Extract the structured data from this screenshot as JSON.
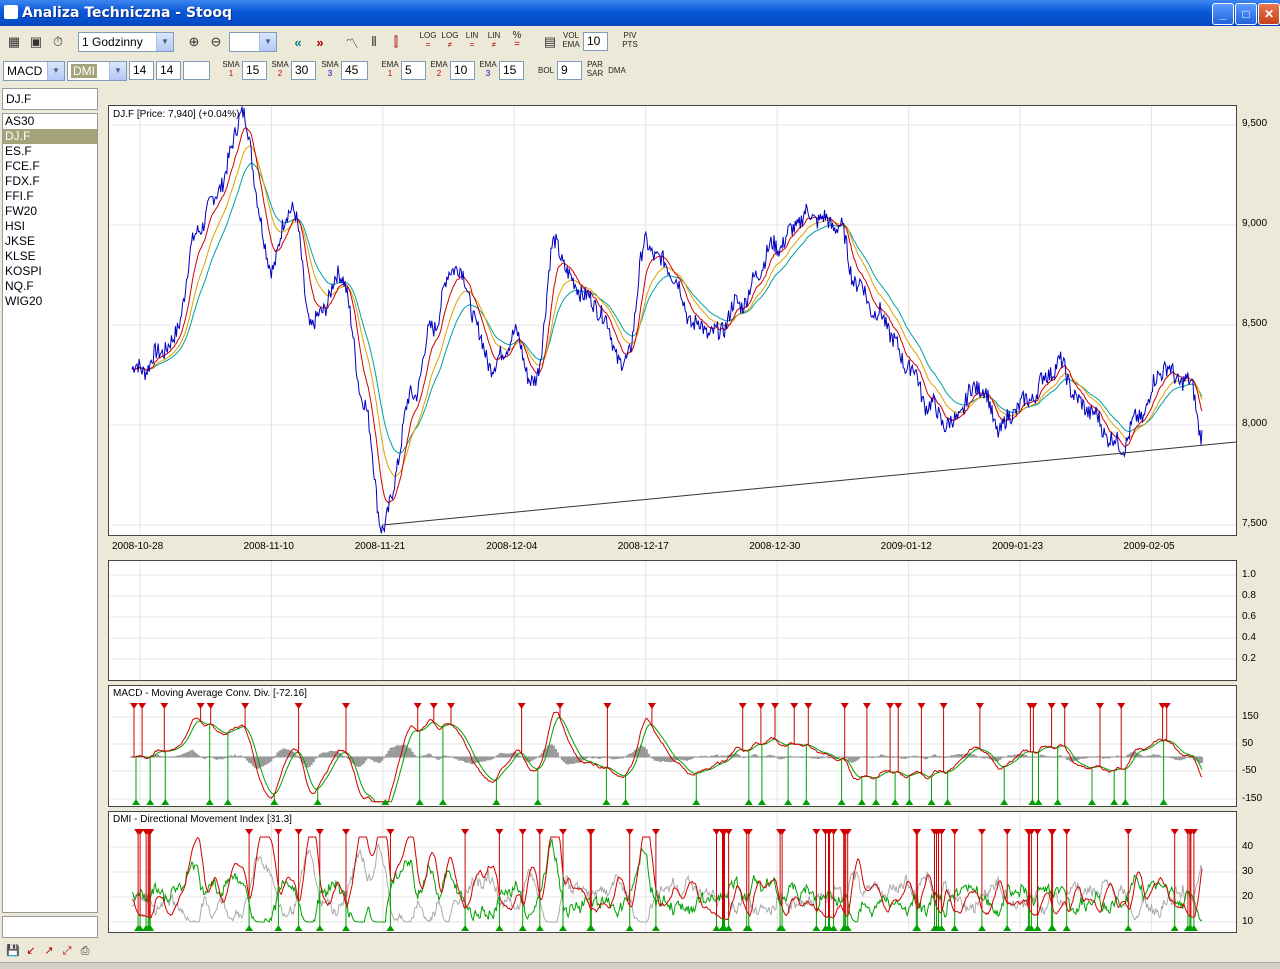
{
  "window": {
    "title": "Analiza Techniczna - Stooq"
  },
  "toolbar1": {
    "interval": "1 Godzinny",
    "zoom_value": "",
    "log_eq": [
      "LOG",
      "="
    ],
    "log_neq": [
      "LOG",
      "≠"
    ],
    "lin_eq": [
      "LIN",
      "="
    ],
    "lin_neq": [
      "LIN",
      "≠"
    ],
    "pct": [
      "%",
      "="
    ],
    "vol_ema": [
      "VOL",
      "EMA"
    ],
    "vol_ema_value": "10",
    "piv_pts": [
      "PIV",
      "PTS"
    ]
  },
  "toolbar2": {
    "indicator1": "MACD",
    "indicator2": "DMI",
    "param1": "14",
    "param2": "14",
    "param3": "",
    "sma1": "15",
    "sma2": "30",
    "sma3": "45",
    "ema1": "5",
    "ema2": "10",
    "ema3": "15",
    "bol": "9",
    "sma_label": "SMA",
    "ema_label": "EMA",
    "bol_label": "BOL",
    "par_sar": [
      "PAR",
      "SAR"
    ],
    "dma_label": "DMA",
    "idx": [
      "1",
      "2",
      "3"
    ]
  },
  "sidebar": {
    "current": "DJ.F",
    "items": [
      "AS30",
      "DJ.F",
      "ES.F",
      "FCE.F",
      "FDX.F",
      "FFI.F",
      "FW20",
      "HSI",
      "JKSE",
      "KLSE",
      "KOSPI",
      "NQ.F",
      "WIG20"
    ],
    "selected_index": 1
  },
  "price_panel": {
    "title": "DJ.F [Price: 7,940] (+0.04%)",
    "yticks": [
      "9,500",
      "9,000",
      "8,500",
      "8,000",
      "7,500"
    ],
    "xticks": [
      "2008-10-28",
      "2008-11-10",
      "2008-11-21",
      "2008-12-04",
      "2008-12-17",
      "2008-12-30",
      "2009-01-12",
      "2009-01-23",
      "2009-02-05"
    ]
  },
  "volume_panel": {
    "yticks": [
      "1.0",
      "0.8",
      "0.6",
      "0.4",
      "0.2"
    ]
  },
  "macd_panel": {
    "title": "MACD - Moving Average Conv. Div. [-72.16]",
    "yticks": [
      "150",
      "50",
      "-50",
      "-150"
    ]
  },
  "dmi_panel": {
    "title": "DMI - Directional Movement Index [31.3]",
    "yticks": [
      "40",
      "30",
      "20",
      "10"
    ]
  },
  "colors": {
    "price": "#0000c0",
    "ema_red": "#d00000",
    "ema_orange": "#e0a000",
    "ema_cyan": "#00a0a0",
    "signal_green": "#00a000",
    "hist": "#999999"
  },
  "chart_data": {
    "type": "line",
    "series": [
      {
        "name": "DJ.F",
        "points": [
          [
            "2008-10-28",
            8280
          ],
          [
            "2008-10-31",
            8400
          ],
          [
            "2008-11-03",
            9000
          ],
          [
            "2008-11-05",
            9200
          ],
          [
            "2008-11-07",
            9550
          ],
          [
            "2008-11-10",
            8800
          ],
          [
            "2008-11-12",
            9100
          ],
          [
            "2008-11-14",
            8500
          ],
          [
            "2008-11-17",
            8750
          ],
          [
            "2008-11-19",
            8150
          ],
          [
            "2008-11-21",
            7500
          ],
          [
            "2008-11-24",
            8150
          ],
          [
            "2008-11-26",
            8500
          ],
          [
            "2008-11-28",
            8800
          ],
          [
            "2008-12-02",
            8300
          ],
          [
            "2008-12-04",
            8450
          ],
          [
            "2008-12-06",
            8200
          ],
          [
            "2008-12-08",
            8900
          ],
          [
            "2008-12-10",
            8700
          ],
          [
            "2008-12-12",
            8600
          ],
          [
            "2008-12-15",
            8300
          ],
          [
            "2008-12-17",
            8900
          ],
          [
            "2008-12-19",
            8800
          ],
          [
            "2008-12-22",
            8500
          ],
          [
            "2008-12-24",
            8450
          ],
          [
            "2008-12-26",
            8600
          ],
          [
            "2008-12-30",
            8900
          ],
          [
            "2009-01-02",
            9050
          ],
          [
            "2009-01-05",
            9000
          ],
          [
            "2009-01-07",
            8700
          ],
          [
            "2009-01-09",
            8550
          ],
          [
            "2009-01-12",
            8300
          ],
          [
            "2009-01-14",
            8100
          ],
          [
            "2009-01-16",
            8000
          ],
          [
            "2009-01-19",
            8200
          ],
          [
            "2009-01-21",
            7980
          ],
          [
            "2009-01-23",
            8100
          ],
          [
            "2009-01-27",
            8300
          ],
          [
            "2009-01-29",
            8100
          ],
          [
            "2009-02-02",
            7900
          ],
          [
            "2009-02-04",
            8050
          ],
          [
            "2009-02-06",
            8280
          ],
          [
            "2009-02-09",
            8200
          ],
          [
            "2009-02-10",
            7940
          ]
        ]
      }
    ],
    "ylim": [
      7500,
      9600
    ],
    "trendline": [
      [
        "2008-11-21",
        7500
      ],
      [
        "2009-02-10",
        7890
      ]
    ]
  }
}
